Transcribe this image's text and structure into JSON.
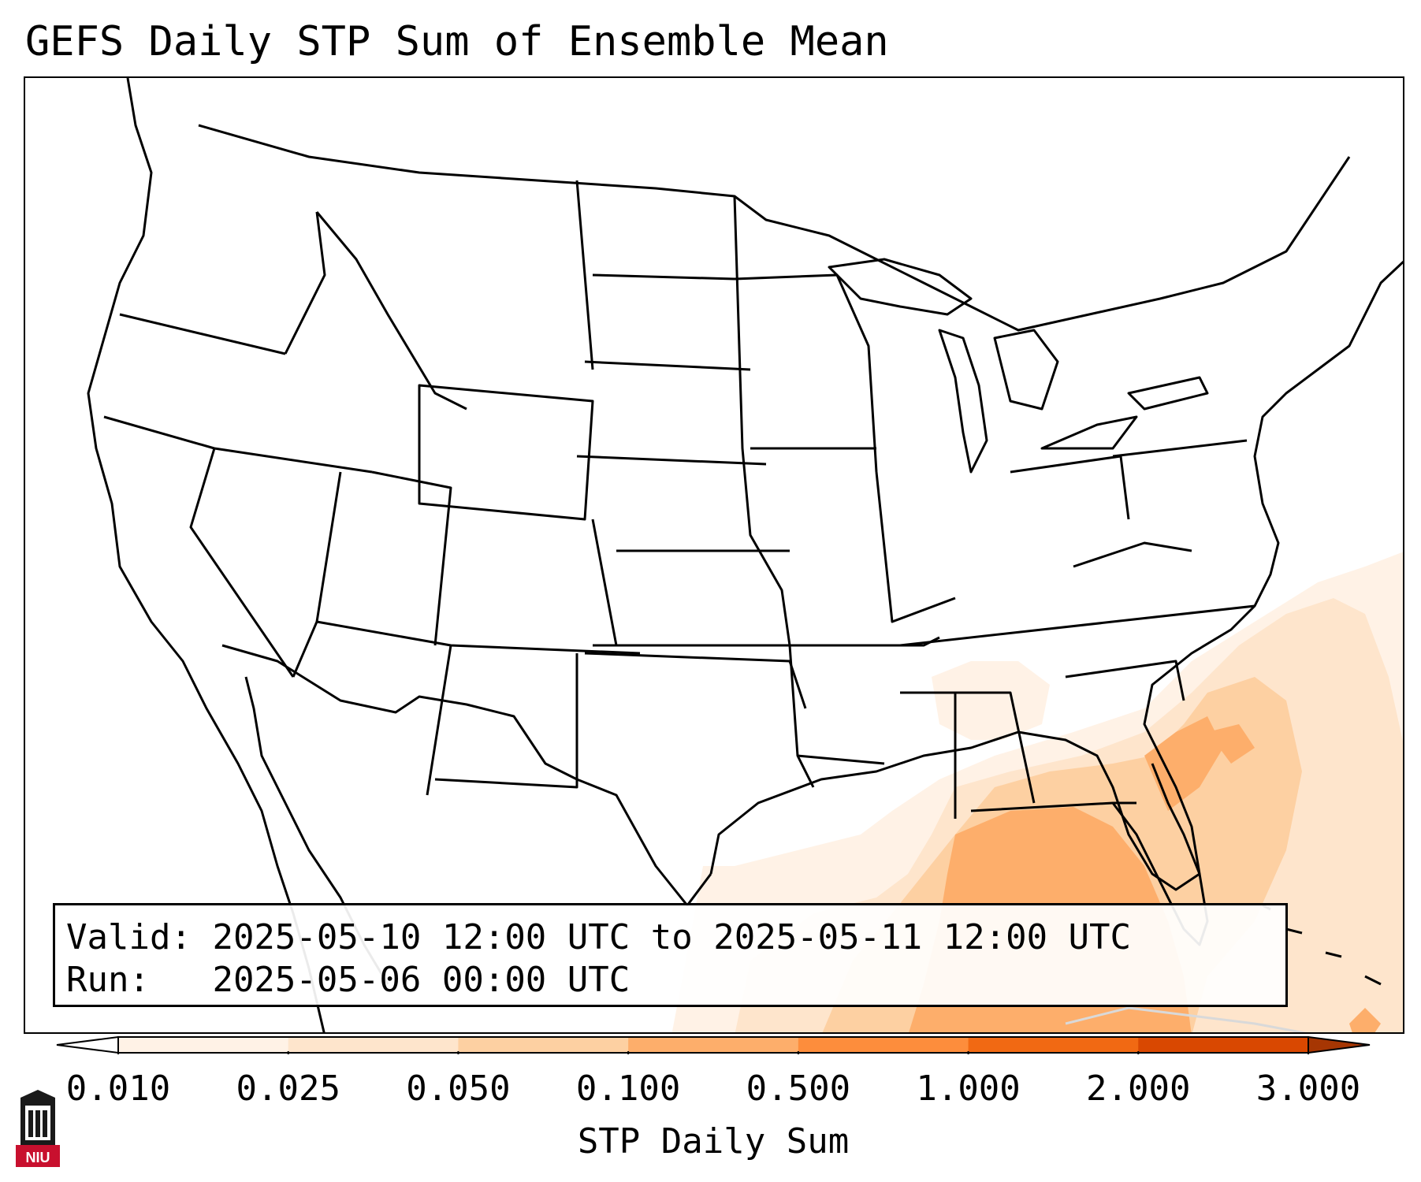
{
  "title": "GEFS Daily STP Sum of Ensemble Mean",
  "info": {
    "valid_label": "Valid:",
    "valid_value": "2025-05-10 12:00 UTC to 2025-05-11 12:00 UTC",
    "run_label": "Run:",
    "run_value": "2025-05-06 00:00 UTC"
  },
  "colorbar": {
    "label": "STP Daily Sum",
    "ticks": [
      "0.010",
      "0.025",
      "0.050",
      "0.100",
      "0.500",
      "1.000",
      "2.000",
      "3.000"
    ],
    "colors": [
      "#fff2e6",
      "#fee5cc",
      "#fdd0a2",
      "#fdae6b",
      "#fd8d3c",
      "#f16913",
      "#d94801"
    ],
    "over_color": "#a63603",
    "under_color": "#ffffff"
  },
  "map": {
    "projection": "Lambert Conformal (CONUS)",
    "features": [
      "state boundaries",
      "coastlines",
      "country borders"
    ],
    "shaded_region": "Gulf of Mexico, Florida, southeastern US and western Atlantic"
  },
  "logo": {
    "text": "NIU"
  },
  "icons": {
    "logo": "niu-logo-icon"
  }
}
